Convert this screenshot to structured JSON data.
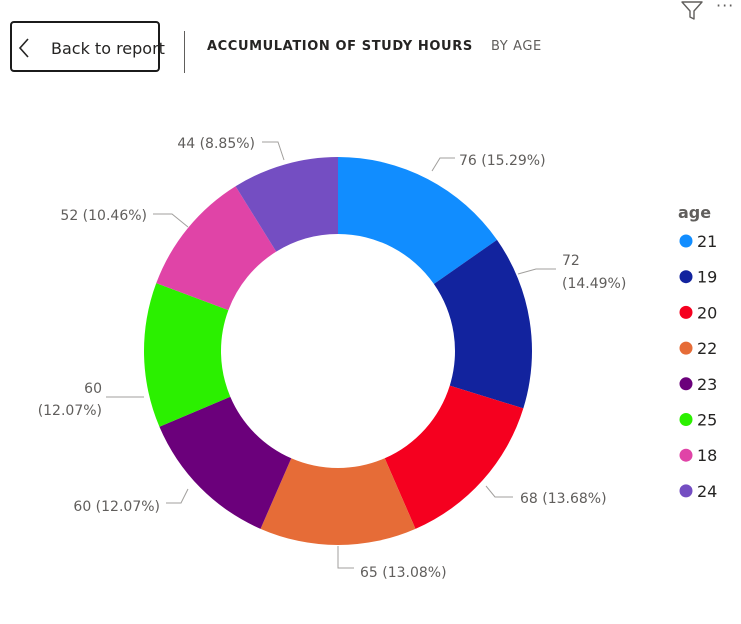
{
  "header": {
    "back_label": "Back to report",
    "title": "ACCUMULATION OF STUDY HOURS",
    "subtitle": "BY AGE"
  },
  "toolbar": {
    "filter_icon": "filter-icon",
    "more_icon": "more-options-icon",
    "more_text": "···"
  },
  "chart_data": {
    "type": "pie",
    "variant": "donut",
    "legend_title": "age",
    "legend_position": "right",
    "slices": [
      {
        "category": "21",
        "value": 76,
        "percent": "15.29%",
        "color": "#118DFF"
      },
      {
        "category": "19",
        "value": 72,
        "percent": "14.49%",
        "color": "#12239E"
      },
      {
        "category": "20",
        "value": 68,
        "percent": "13.68%",
        "color": "#F5001F"
      },
      {
        "category": "22",
        "value": 65,
        "percent": "13.08%",
        "color": "#E66C37"
      },
      {
        "category": "23",
        "value": 60,
        "percent": "12.07%",
        "color": "#6B007B"
      },
      {
        "category": "25",
        "value": 60,
        "percent": "12.07%",
        "color": "#2BF000"
      },
      {
        "category": "18",
        "value": 52,
        "percent": "10.46%",
        "color": "#E044A7"
      },
      {
        "category": "24",
        "value": 44,
        "percent": "8.85%",
        "color": "#744EC2"
      }
    ]
  }
}
